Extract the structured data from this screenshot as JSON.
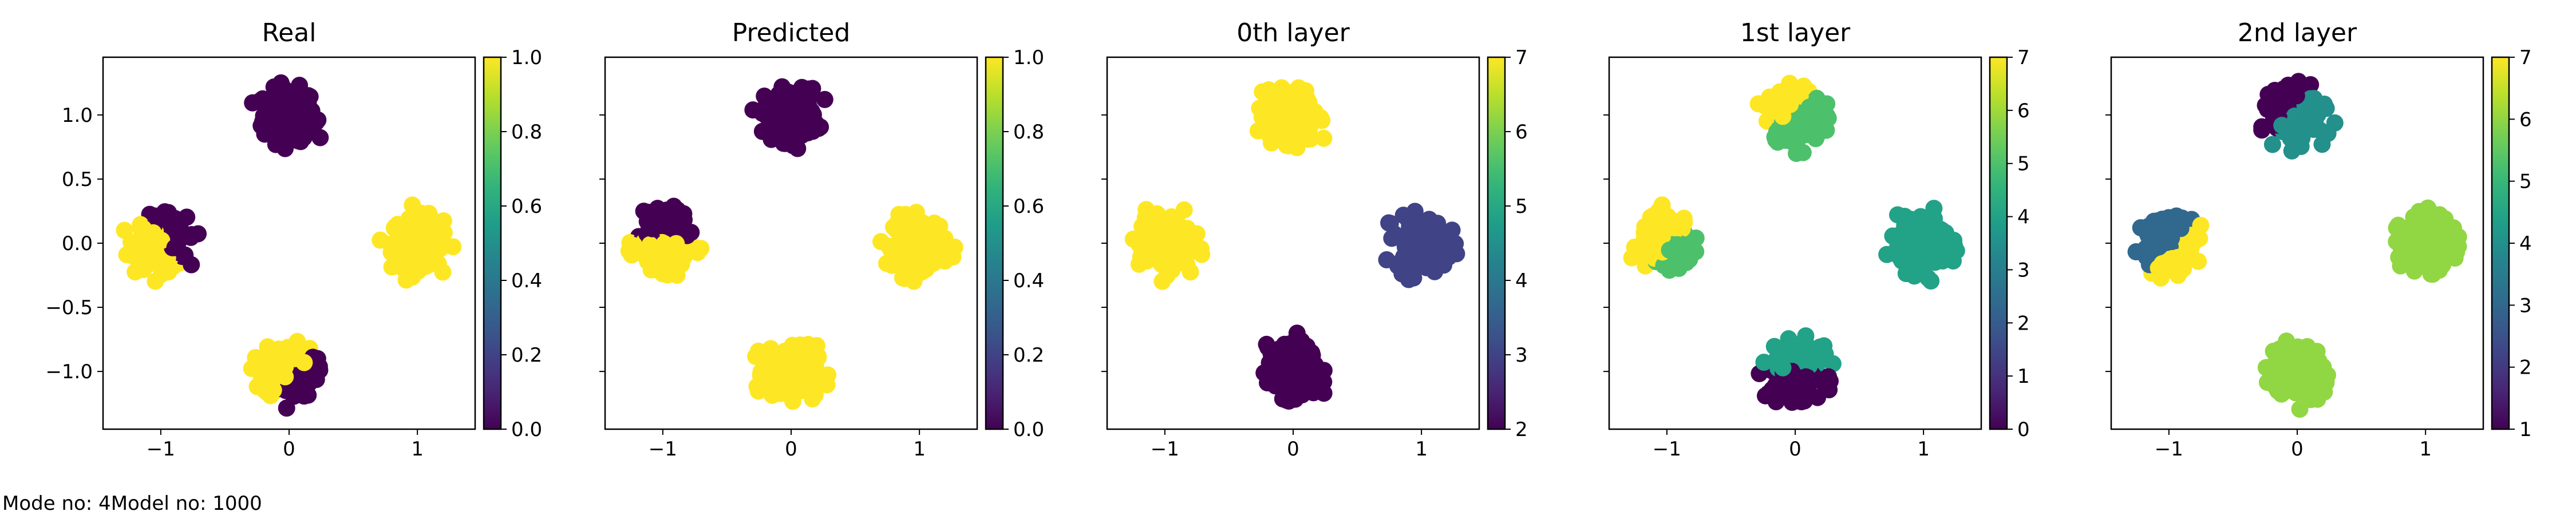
{
  "footer": {
    "mode_text": "Mode no: 4",
    "model_text": "Model no: 1000"
  },
  "palette": {
    "yellow": "#fde725",
    "dark_purple": "#440154",
    "navy": "#3b528b",
    "teal": "#21918c",
    "green": "#5ec962",
    "light_green": "#8fd744"
  },
  "chart_data": [
    {
      "type": "scatter",
      "title": "Real",
      "xlim": [
        -1.45,
        1.45
      ],
      "ylim": [
        -1.45,
        1.45
      ],
      "xticks": [
        -1,
        0,
        1
      ],
      "xtick_labels": [
        "−1",
        "0",
        "1"
      ],
      "yticks": [
        1.0,
        0.5,
        0.0,
        -0.5,
        -1.0
      ],
      "ytick_labels": [
        "1.0",
        "0.5",
        "0.0",
        "−0.5",
        "−1.0"
      ],
      "colorbar": {
        "range": [
          0.0,
          1.0
        ],
        "ticks": [
          0.0,
          0.2,
          0.4,
          0.6,
          0.8,
          1.0
        ],
        "tick_labels": [
          "0.0",
          "0.2",
          "0.4",
          "0.6",
          "0.8",
          "1.0"
        ]
      },
      "clusters": [
        {
          "center": [
            0,
            1
          ],
          "color_value": 0.0
        },
        {
          "center": [
            1,
            0
          ],
          "color_value": 1.0
        },
        {
          "center": [
            -1,
            0
          ],
          "color_value": 1.0,
          "split": {
            "side": "upper-right",
            "color_value": 0.0
          }
        },
        {
          "center": [
            0,
            -1
          ],
          "color_value": 1.0,
          "split": {
            "side": "lower-right",
            "color_value": 0.0
          }
        }
      ]
    },
    {
      "type": "scatter",
      "title": "Predicted",
      "xlim": [
        -1.45,
        1.45
      ],
      "ylim": [
        -1.45,
        1.45
      ],
      "xticks": [
        -1,
        0,
        1
      ],
      "xtick_labels": [
        "−1",
        "0",
        "1"
      ],
      "yticks": [
        1.0,
        0.5,
        0.0,
        -0.5,
        -1.0
      ],
      "ytick_labels": [
        "",
        "",
        "",
        "",
        ""
      ],
      "colorbar": {
        "range": [
          0.0,
          1.0
        ],
        "ticks": [
          0.0,
          0.2,
          0.4,
          0.6,
          0.8,
          1.0
        ],
        "tick_labels": [
          "0.0",
          "0.2",
          "0.4",
          "0.6",
          "0.8",
          "1.0"
        ]
      },
      "clusters": [
        {
          "center": [
            0,
            1
          ],
          "color_value": 0.0
        },
        {
          "center": [
            1,
            0
          ],
          "color_value": 1.0
        },
        {
          "center": [
            -1,
            0
          ],
          "color_value": 1.0,
          "split": {
            "side": "upper",
            "color_value": 0.0
          }
        },
        {
          "center": [
            0,
            -1
          ],
          "color_value": 1.0
        }
      ]
    },
    {
      "type": "scatter",
      "title": "0th layer",
      "xlim": [
        -1.45,
        1.45
      ],
      "ylim": [
        -1.45,
        1.45
      ],
      "xticks": [
        -1,
        0,
        1
      ],
      "xtick_labels": [
        "−1",
        "0",
        "1"
      ],
      "yticks": [
        1.0,
        0.5,
        0.0,
        -0.5,
        -1.0
      ],
      "ytick_labels": [
        "",
        "",
        "",
        "",
        ""
      ],
      "colorbar": {
        "range": [
          2,
          7
        ],
        "ticks": [
          2,
          3,
          4,
          5,
          6,
          7
        ],
        "tick_labels": [
          "2",
          "3",
          "4",
          "5",
          "6",
          "7"
        ]
      },
      "clusters": [
        {
          "center": [
            0,
            1
          ],
          "color_value": 7
        },
        {
          "center": [
            1,
            0
          ],
          "color_value": 3
        },
        {
          "center": [
            -1,
            0
          ],
          "color_value": 7
        },
        {
          "center": [
            0,
            -1
          ],
          "color_value": 2
        }
      ]
    },
    {
      "type": "scatter",
      "title": "1st layer",
      "xlim": [
        -1.45,
        1.45
      ],
      "ylim": [
        -1.45,
        1.45
      ],
      "xticks": [
        -1,
        0,
        1
      ],
      "xtick_labels": [
        "−1",
        "0",
        "1"
      ],
      "yticks": [
        1.0,
        0.5,
        0.0,
        -0.5,
        -1.0
      ],
      "ytick_labels": [
        "",
        "",
        "",
        "",
        ""
      ],
      "colorbar": {
        "range": [
          0,
          7
        ],
        "ticks": [
          0,
          1,
          2,
          3,
          4,
          5,
          6,
          7
        ],
        "tick_labels": [
          "0",
          "1",
          "2",
          "3",
          "4",
          "5",
          "6",
          "7"
        ]
      },
      "clusters": [
        {
          "center": [
            0,
            1
          ],
          "color_value": 5,
          "split": {
            "side": "upper-left",
            "color_value": 7
          }
        },
        {
          "center": [
            1,
            0
          ],
          "color_value": 4
        },
        {
          "center": [
            -1,
            0
          ],
          "color_value": 7,
          "split": {
            "side": "lower-right",
            "color_value": 5
          }
        },
        {
          "center": [
            0,
            -1
          ],
          "color_value": 0,
          "split": {
            "side": "upper",
            "color_value": 4
          }
        }
      ]
    },
    {
      "type": "scatter",
      "title": "2nd layer",
      "xlim": [
        -1.45,
        1.45
      ],
      "ylim": [
        -1.45,
        1.45
      ],
      "xticks": [
        -1,
        0,
        1
      ],
      "xtick_labels": [
        "−1",
        "0",
        "1"
      ],
      "yticks": [
        1.0,
        0.5,
        0.0,
        -0.5,
        -1.0
      ],
      "ytick_labels": [
        "",
        "",
        "",
        "",
        ""
      ],
      "colorbar": {
        "range": [
          1,
          7
        ],
        "ticks": [
          1,
          2,
          3,
          4,
          5,
          6,
          7
        ],
        "tick_labels": [
          "1",
          "2",
          "3",
          "4",
          "5",
          "6",
          "7"
        ]
      },
      "clusters": [
        {
          "center": [
            0,
            1
          ],
          "color_value": 4,
          "split": {
            "side": "upper-left",
            "color_value": 1
          }
        },
        {
          "center": [
            1,
            0
          ],
          "color_value": 6
        },
        {
          "center": [
            -1,
            0
          ],
          "color_value": 3,
          "split": {
            "side": "lower-right",
            "color_value": 7
          }
        },
        {
          "center": [
            0,
            -1
          ],
          "color_value": 6
        }
      ]
    }
  ]
}
